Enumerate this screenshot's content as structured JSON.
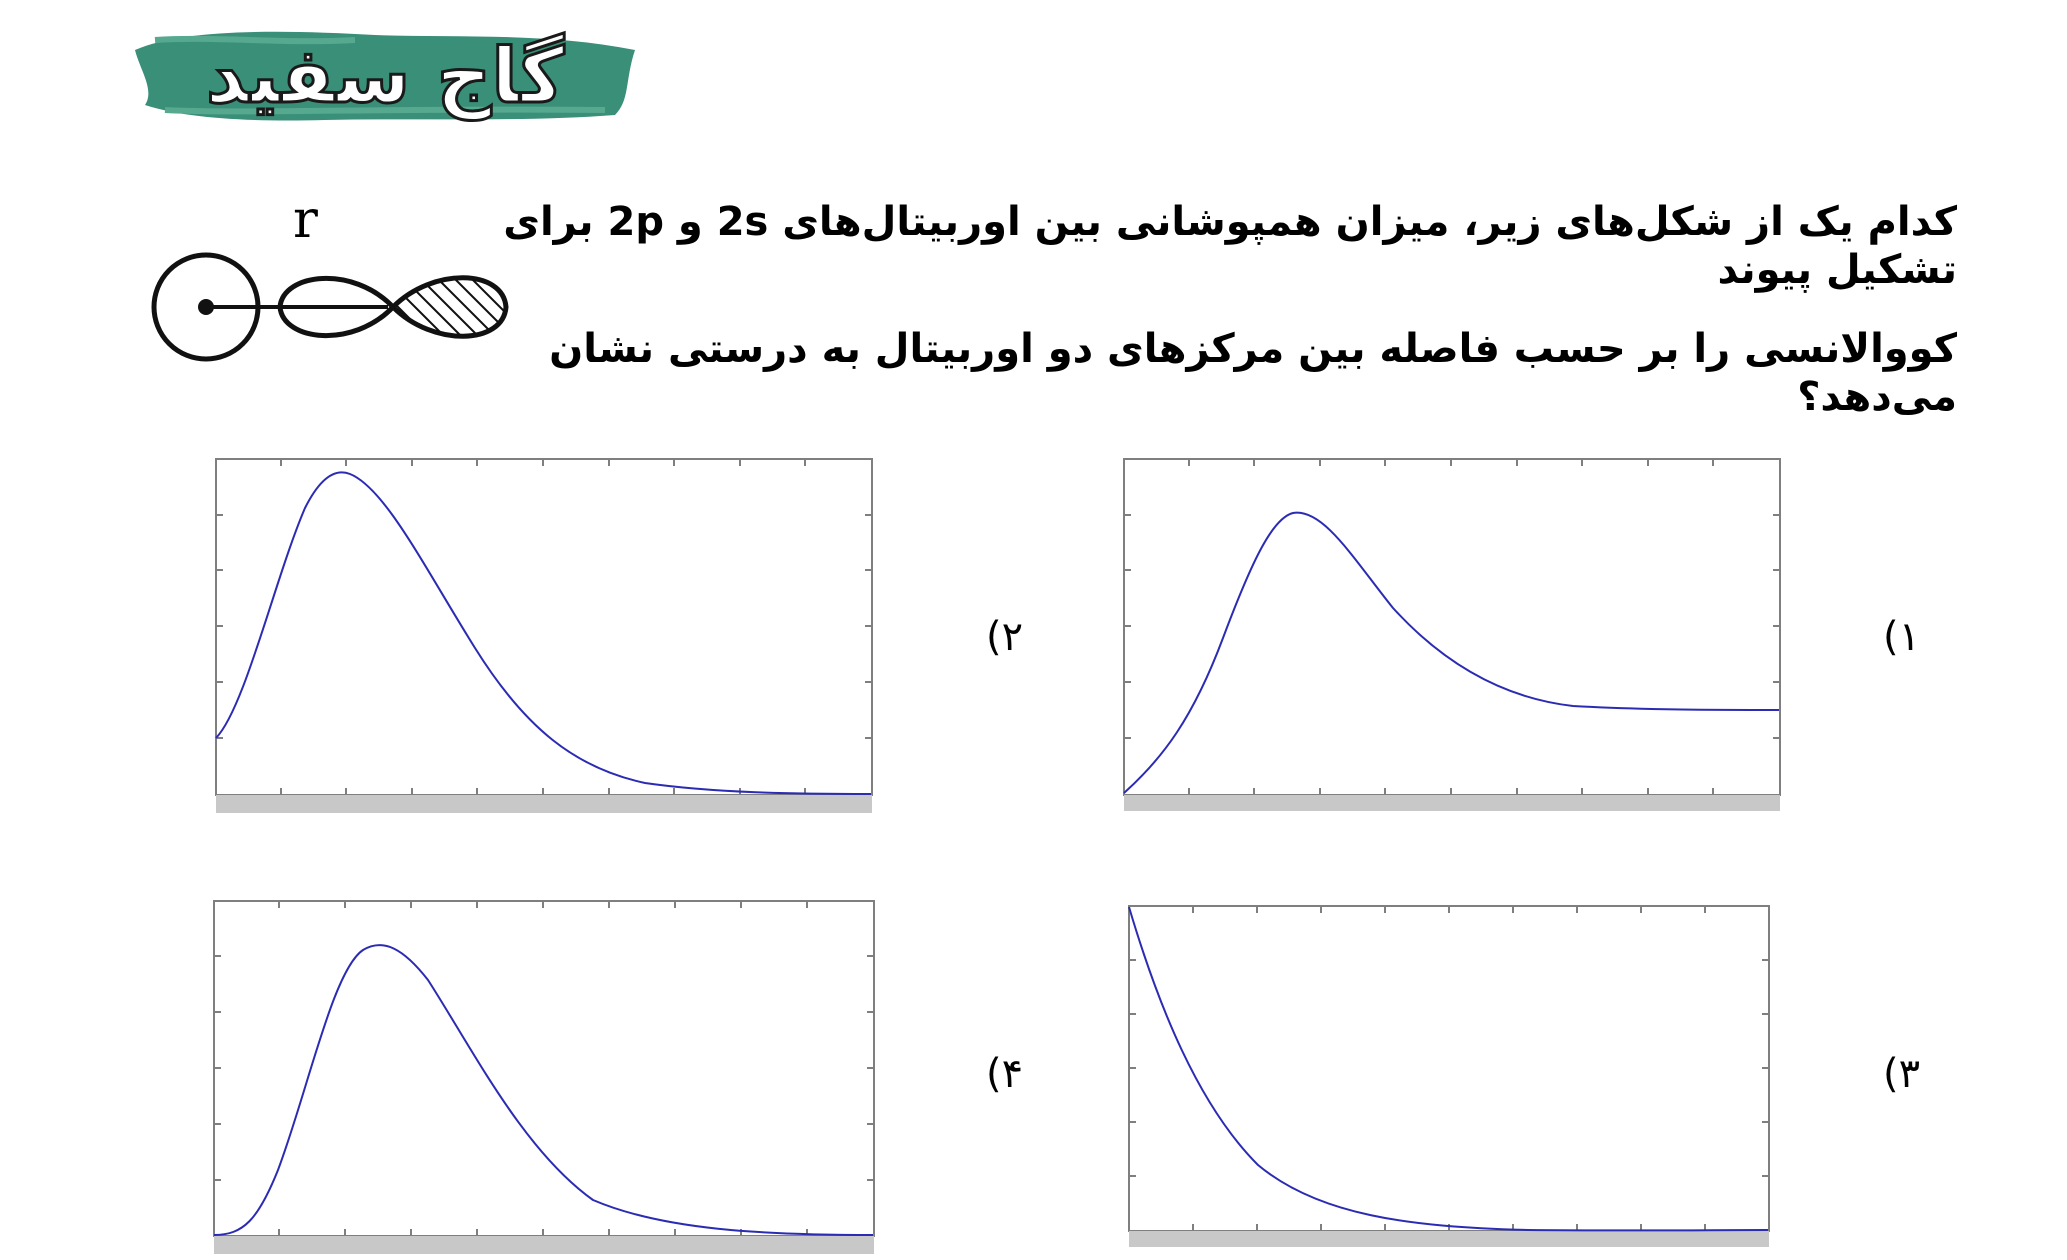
{
  "logo": {
    "text": "گاج سفید",
    "colors": {
      "brush": "#3a8f78",
      "text": "#ffffff",
      "outline": "#1a1a1a"
    }
  },
  "question": {
    "line1": "کدام یک از شکل‌های زیر، میزان همپوشانی بین اوربیتال‌های 2s و 2p برای تشکیل پیوند",
    "line2": "کووالانسی را بر حسب فاصله بین مرکزهای دو اوربیتال به درستی نشان می‌دهد؟"
  },
  "diagram": {
    "r_label": "r",
    "icons": [
      "s-orbital-circle",
      "p-orbital-lobes"
    ]
  },
  "options": [
    {
      "label": "۱)",
      "curve": "rise-peak-then-plateau"
    },
    {
      "label": "۲)",
      "curve": "nonzero-start-peak-then-zero"
    },
    {
      "label": "۳)",
      "curve": "exponential-decay"
    },
    {
      "label": "۴)",
      "curve": "zero-start-peak-then-zero"
    }
  ],
  "colors": {
    "curve": "#2b2bb3",
    "frame": "#7f7f7f",
    "axis_band": "#c8c8c8"
  }
}
